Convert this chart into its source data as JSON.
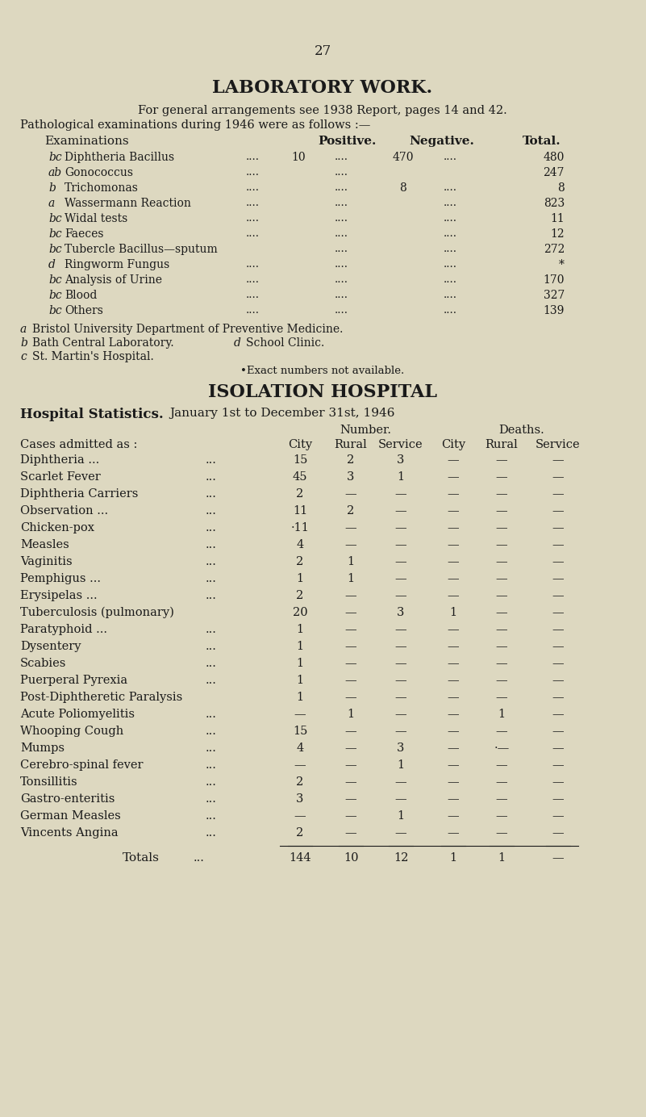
{
  "bg_color": "#ddd8c0",
  "text_color": "#1a1a1a",
  "page_number": "27",
  "lab_title": "LABORATORY WORK.",
  "lab_sub1": "For general arrangements see 1938 Report, pages 14 and 42.",
  "lab_sub2": "Pathological examinations during 1946 were as follows :—",
  "lab_header": [
    "Examinations",
    "Positive.",
    "Negative.",
    "Total."
  ],
  "lab_rows": [
    {
      "prefix": "bc",
      "name": "Diphtheria Bacillus",
      "dots1": "....",
      "pos": "10",
      "dots2": "....",
      "neg": "470",
      "dots3": "....",
      "total": "480"
    },
    {
      "prefix": "ab",
      "name": "Gonococcus",
      "dots1": "....",
      "pos": "",
      "dots2": "....",
      "neg": "",
      "dots3": "",
      "total": "247"
    },
    {
      "prefix": "b",
      "name": "Trichomonas",
      "dots1": "....",
      "pos": "",
      "dots2": "....",
      "neg": "8",
      "dots3": "....",
      "total": "8"
    },
    {
      "prefix": "a",
      "name": "Wassermann Reaction",
      "dots1": "....",
      "pos": "",
      "dots2": "....",
      "neg": "",
      "dots3": "....",
      "total": "823"
    },
    {
      "prefix": "bc",
      "name": "Widal tests",
      "dots1": "....",
      "pos": "",
      "dots2": "....",
      "neg": "",
      "dots3": "....",
      "total": "11"
    },
    {
      "prefix": "bc",
      "name": "Faeces",
      "dots1": "....",
      "pos": "",
      "dots2": "....",
      "neg": "",
      "dots3": "....",
      "total": "12"
    },
    {
      "prefix": "bc",
      "name": "Tubercle Bacillus—sputum",
      "dots1": "",
      "pos": "",
      "dots2": "....",
      "neg": "",
      "dots3": "....",
      "total": "272"
    },
    {
      "prefix": "d",
      "name": "Ringworm Fungus",
      "dots1": "....",
      "pos": "",
      "dots2": "....",
      "neg": "",
      "dots3": "....",
      "total": "*"
    },
    {
      "prefix": "bc",
      "name": "Analysis of Urine",
      "dots1": "....",
      "pos": "",
      "dots2": "....",
      "neg": "",
      "dots3": "....",
      "total": "170"
    },
    {
      "prefix": "bc",
      "name": "Blood",
      "dots1": "....",
      "pos": "",
      "dots2": "....",
      "neg": "",
      "dots3": "....",
      "total": "327"
    },
    {
      "prefix": "bc",
      "name": "Others",
      "dots1": "....",
      "pos": "",
      "dots2": "....",
      "neg": "",
      "dots3": "....",
      "total": "139"
    }
  ],
  "footnote_a": "a",
  "footnote_a_text": "Bristol University Department of Preventive Medicine.",
  "footnote_b": "b",
  "footnote_b_text": "Bath Central Laboratory.",
  "footnote_d": "d",
  "footnote_d_text": "School Clinic.",
  "footnote_c": "c",
  "footnote_c_text": "St. Martin's Hospital.",
  "footnote_star": "•Exact numbers not available.",
  "iso_title": "ISOLATION HOSPITAL",
  "iso_bold": "Hospital Statistics.",
  "iso_date": "January 1st to December 31st, 1946",
  "iso_num_hdr": "Number.",
  "iso_dth_hdr": "Deaths.",
  "iso_col_hdr": [
    "Cases admitted as :",
    "City",
    "Rural",
    "Service",
    "City",
    "Rural",
    "Service"
  ],
  "iso_rows": [
    {
      "name": "Diphtheria ...",
      "dots": "...",
      "city": "15",
      "rural": "2",
      "svc": "3",
      "dcity": "—",
      "drural": "—",
      "dsvc": "—"
    },
    {
      "name": "Scarlet Fever",
      "dots": "...",
      "city": "45",
      "rural": "3",
      "svc": "1",
      "dcity": "—",
      "drural": "—",
      "dsvc": "—"
    },
    {
      "name": "Diphtheria Carriers",
      "dots": "...",
      "city": "2",
      "rural": "—",
      "svc": "—",
      "dcity": "—",
      "drural": "—",
      "dsvc": "—"
    },
    {
      "name": "Observation ...",
      "dots": "...",
      "city": "11",
      "rural": "2",
      "svc": "—",
      "dcity": "—",
      "drural": "—",
      "dsvc": "—"
    },
    {
      "name": "Chicken-pox",
      "dots": "...",
      "city": "·11",
      "rural": "—",
      "svc": "—",
      "dcity": "—",
      "drural": "—",
      "dsvc": "—"
    },
    {
      "name": "Measles",
      "dots": "...",
      "city": "4",
      "rural": "—",
      "svc": "—",
      "dcity": "—",
      "drural": "—",
      "dsvc": "—"
    },
    {
      "name": "Vaginitis",
      "dots": "...",
      "city": "2",
      "rural": "1",
      "svc": "—",
      "dcity": "—",
      "drural": "—",
      "dsvc": "—"
    },
    {
      "name": "Pemphigus ...",
      "dots": "...",
      "city": "1",
      "rural": "1",
      "svc": "—",
      "dcity": "—",
      "drural": "—",
      "dsvc": "—"
    },
    {
      "name": "Erysipelas ...",
      "dots": "...",
      "city": "2",
      "rural": "—",
      "svc": "—",
      "dcity": "—",
      "drural": "—",
      "dsvc": "—"
    },
    {
      "name": "Tuberculosis (pulmonary)",
      "dots": "",
      "city": "20",
      "rural": "—",
      "svc": "3",
      "dcity": "1",
      "drural": "—",
      "dsvc": "—"
    },
    {
      "name": "Paratyphoid ...",
      "dots": "...",
      "city": "1",
      "rural": "—",
      "svc": "—",
      "dcity": "—",
      "drural": "—",
      "dsvc": "—"
    },
    {
      "name": "Dysentery",
      "dots": "...",
      "city": "1",
      "rural": "—",
      "svc": "—",
      "dcity": "—",
      "drural": "—",
      "dsvc": "—"
    },
    {
      "name": "Scabies",
      "dots": "...",
      "city": "1",
      "rural": "—",
      "svc": "—",
      "dcity": "—",
      "drural": "—",
      "dsvc": "—"
    },
    {
      "name": "Puerperal Pyrexia",
      "dots": "...",
      "city": "1",
      "rural": "—",
      "svc": "—",
      "dcity": "—",
      "drural": "—",
      "dsvc": "—"
    },
    {
      "name": "Post-Diphtheretic Paralysis",
      "dots": "",
      "city": "1",
      "rural": "—",
      "svc": "—",
      "dcity": "—",
      "drural": "—",
      "dsvc": "—"
    },
    {
      "name": "Acute Poliomyelitis",
      "dots": "...",
      "city": "—",
      "rural": "1",
      "svc": "—",
      "dcity": "—",
      "drural": "1",
      "dsvc": "—"
    },
    {
      "name": "Whooping Cough",
      "dots": "...",
      "city": "15",
      "rural": "—",
      "svc": "—",
      "dcity": "—",
      "drural": "—",
      "dsvc": "—"
    },
    {
      "name": "Mumps",
      "dots": "...",
      "city": "4",
      "rural": "—",
      "svc": "3",
      "dcity": "—",
      "drural": "·—",
      "dsvc": "—"
    },
    {
      "name": "Cerebro-spinal fever",
      "dots": "...",
      "city": "—",
      "rural": "—",
      "svc": "1",
      "dcity": "—",
      "drural": "—",
      "dsvc": "—"
    },
    {
      "name": "Tonsillitis",
      "dots": "...",
      "city": "2",
      "rural": "—",
      "svc": "—",
      "dcity": "—",
      "drural": "—",
      "dsvc": "—"
    },
    {
      "name": "Gastro-enteritis",
      "dots": "...",
      "city": "3",
      "rural": "—",
      "svc": "—",
      "dcity": "—",
      "drural": "—",
      "dsvc": "—"
    },
    {
      "name": "German Measles",
      "dots": "...",
      "city": "—",
      "rural": "—",
      "svc": "1",
      "dcity": "—",
      "drural": "—",
      "dsvc": "—"
    },
    {
      "name": "Vincents Angina",
      "dots": "...",
      "city": "2",
      "rural": "—",
      "svc": "—",
      "dcity": "—",
      "drural": "—",
      "dsvc": "—"
    }
  ],
  "iso_total_name": "Totals",
  "iso_total_dots": "...",
  "iso_total_vals": [
    "144",
    "10",
    "12",
    "1",
    "1",
    "—"
  ]
}
